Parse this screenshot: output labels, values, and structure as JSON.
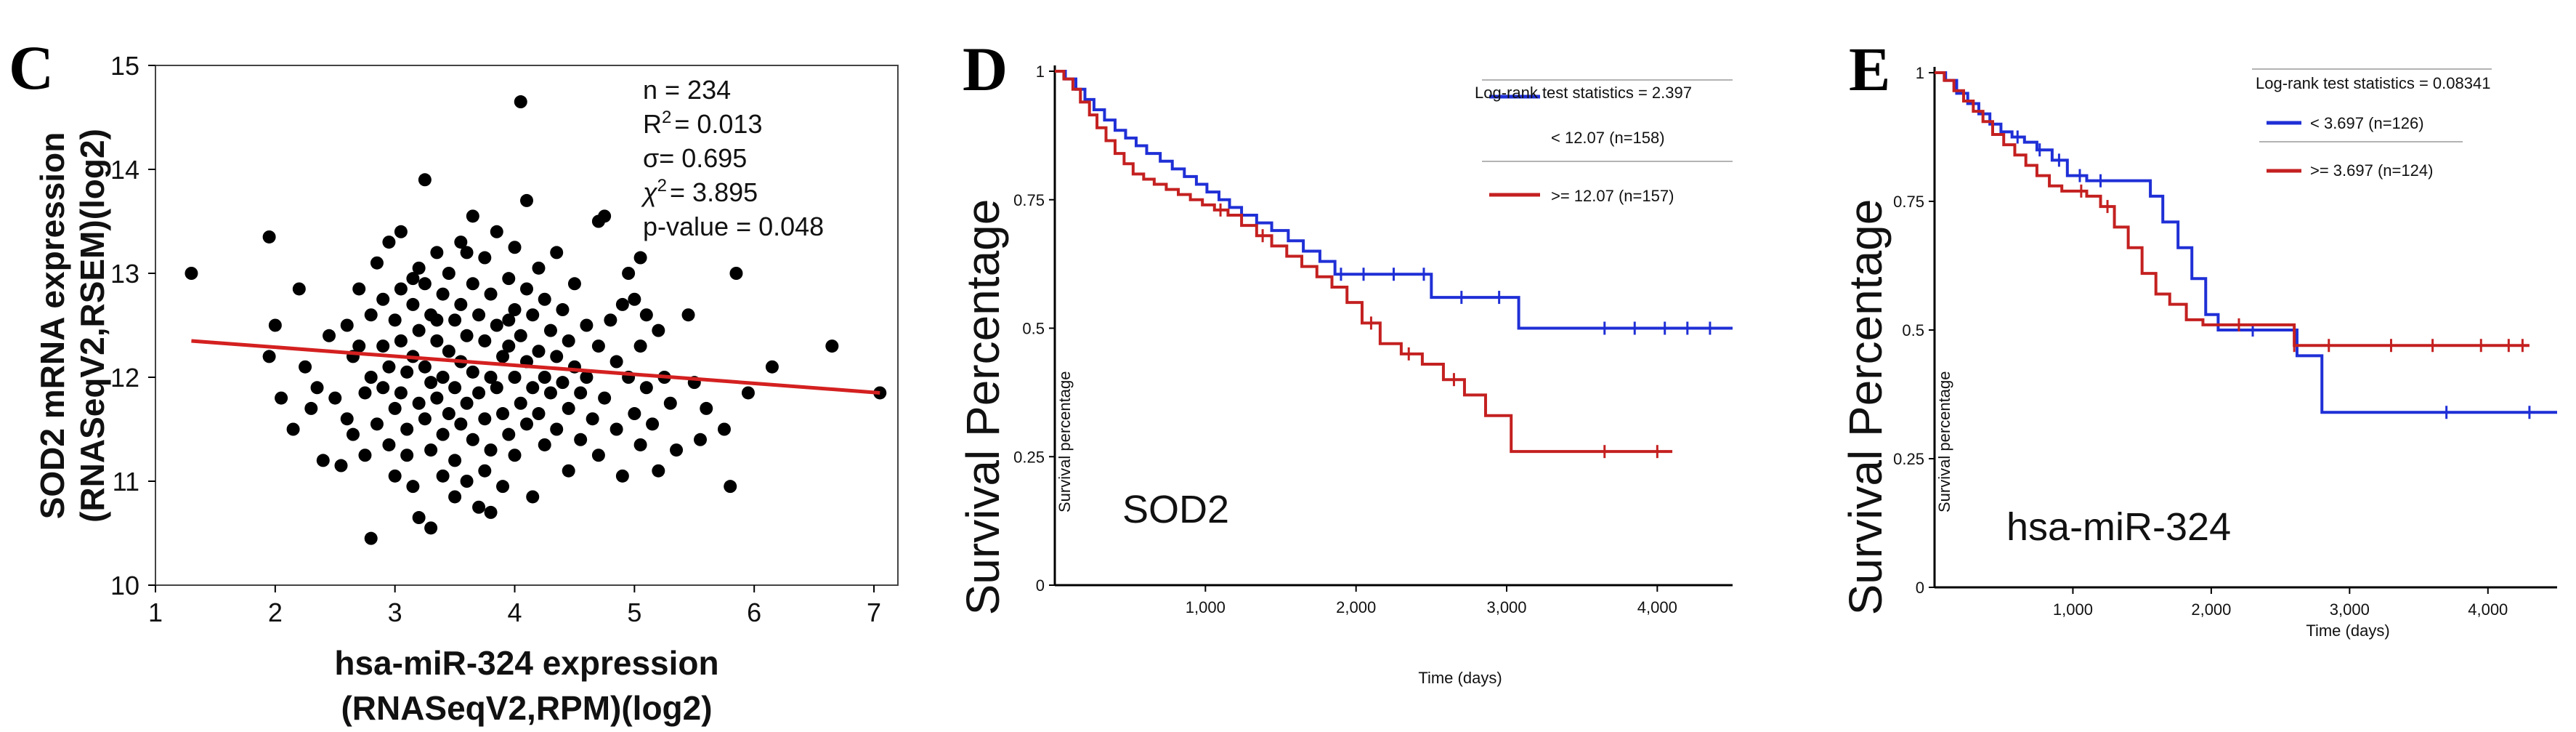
{
  "chart_data": [
    {
      "panel": "C",
      "type": "scatter",
      "ylabel_line1": "SOD2 mRNA expression",
      "ylabel_line2": "(RNASeqV2,RSEM)(log2)",
      "xlabel_line1": "hsa-miR-324 expression",
      "xlabel_line2": "(RNASeqV2,RPM)(log2)",
      "xlim": [
        1,
        7.2
      ],
      "ylim": [
        10,
        15
      ],
      "xticks": [
        "1",
        "2",
        "3",
        "4",
        "5",
        "6",
        "7"
      ],
      "yticks": [
        "10",
        "11",
        "12",
        "13",
        "14",
        "15"
      ],
      "stats": {
        "n": "n = 234",
        "r2_prefix": "R",
        "r2_sup": "2",
        "r2_value": "= 0.013",
        "sigma": "σ= 0.695",
        "chi_prefix": "χ",
        "chi_sup": "2",
        "chi_value": "= 3.895",
        "pvalue": "p-value = 0.048"
      },
      "fit_line": {
        "x": [
          1.3,
          7.05
        ],
        "y": [
          12.35,
          11.85
        ],
        "color": "#d42020"
      },
      "point_color": "#000000",
      "points": [
        [
          1.3,
          13.0
        ],
        [
          1.95,
          13.35
        ],
        [
          1.95,
          12.2
        ],
        [
          2.0,
          12.5
        ],
        [
          2.05,
          11.8
        ],
        [
          2.15,
          11.5
        ],
        [
          2.25,
          12.1
        ],
        [
          2.3,
          11.7
        ],
        [
          2.4,
          11.2
        ],
        [
          2.45,
          12.4
        ],
        [
          2.5,
          11.8
        ],
        [
          2.55,
          11.15
        ],
        [
          2.6,
          12.5
        ],
        [
          2.6,
          11.6
        ],
        [
          2.65,
          12.2
        ],
        [
          2.7,
          12.85
        ],
        [
          2.7,
          12.3
        ],
        [
          2.75,
          11.85
        ],
        [
          2.75,
          11.25
        ],
        [
          2.8,
          12.6
        ],
        [
          2.8,
          12.0
        ],
        [
          2.8,
          10.45
        ],
        [
          2.85,
          13.1
        ],
        [
          2.85,
          11.55
        ],
        [
          2.9,
          12.75
        ],
        [
          2.9,
          12.3
        ],
        [
          2.9,
          11.9
        ],
        [
          2.95,
          13.3
        ],
        [
          2.95,
          12.1
        ],
        [
          2.95,
          11.35
        ],
        [
          3.0,
          12.55
        ],
        [
          3.0,
          11.7
        ],
        [
          3.0,
          11.05
        ],
        [
          3.05,
          13.4
        ],
        [
          3.05,
          12.85
        ],
        [
          3.05,
          12.35
        ],
        [
          3.05,
          11.85
        ],
        [
          3.1,
          12.05
        ],
        [
          3.1,
          11.5
        ],
        [
          3.1,
          11.25
        ],
        [
          3.15,
          12.7
        ],
        [
          3.15,
          12.2
        ],
        [
          3.15,
          10.95
        ],
        [
          3.2,
          13.05
        ],
        [
          3.2,
          12.45
        ],
        [
          3.2,
          11.75
        ],
        [
          3.2,
          10.65
        ],
        [
          3.25,
          13.9
        ],
        [
          3.25,
          12.9
        ],
        [
          3.25,
          12.1
        ],
        [
          3.25,
          11.6
        ],
        [
          3.3,
          12.6
        ],
        [
          3.3,
          11.95
        ],
        [
          3.3,
          11.3
        ],
        [
          3.3,
          10.55
        ],
        [
          3.35,
          13.2
        ],
        [
          3.35,
          12.35
        ],
        [
          3.35,
          11.8
        ],
        [
          3.4,
          12.8
        ],
        [
          3.4,
          12.0
        ],
        [
          3.4,
          11.45
        ],
        [
          3.4,
          11.05
        ],
        [
          3.45,
          13.0
        ],
        [
          3.45,
          12.25
        ],
        [
          3.45,
          11.65
        ],
        [
          3.5,
          12.55
        ],
        [
          3.5,
          11.9
        ],
        [
          3.5,
          11.2
        ],
        [
          3.5,
          10.85
        ],
        [
          3.55,
          13.3
        ],
        [
          3.55,
          12.7
        ],
        [
          3.55,
          12.15
        ],
        [
          3.55,
          11.55
        ],
        [
          3.6,
          12.4
        ],
        [
          3.6,
          11.75
        ],
        [
          3.6,
          11.0
        ],
        [
          3.65,
          13.55
        ],
        [
          3.65,
          12.9
        ],
        [
          3.65,
          12.05
        ],
        [
          3.65,
          11.4
        ],
        [
          3.7,
          12.6
        ],
        [
          3.7,
          11.85
        ],
        [
          3.7,
          10.75
        ],
        [
          3.75,
          13.15
        ],
        [
          3.75,
          12.35
        ],
        [
          3.75,
          11.6
        ],
        [
          3.75,
          11.1
        ],
        [
          3.8,
          12.8
        ],
        [
          3.8,
          12.0
        ],
        [
          3.8,
          11.3
        ],
        [
          3.8,
          10.7
        ],
        [
          3.85,
          13.4
        ],
        [
          3.85,
          12.5
        ],
        [
          3.85,
          11.9
        ],
        [
          3.9,
          12.2
        ],
        [
          3.9,
          11.65
        ],
        [
          3.9,
          10.95
        ],
        [
          3.95,
          12.95
        ],
        [
          3.95,
          12.3
        ],
        [
          3.95,
          11.45
        ],
        [
          4.0,
          13.25
        ],
        [
          4.0,
          12.65
        ],
        [
          4.0,
          12.0
        ],
        [
          4.0,
          11.25
        ],
        [
          4.05,
          14.65
        ],
        [
          4.05,
          12.4
        ],
        [
          4.05,
          11.75
        ],
        [
          4.1,
          13.7
        ],
        [
          4.1,
          12.85
        ],
        [
          4.1,
          12.15
        ],
        [
          4.1,
          11.55
        ],
        [
          4.15,
          12.6
        ],
        [
          4.15,
          11.9
        ],
        [
          4.15,
          10.85
        ],
        [
          4.2,
          13.05
        ],
        [
          4.2,
          12.25
        ],
        [
          4.2,
          11.65
        ],
        [
          4.25,
          12.75
        ],
        [
          4.25,
          12.0
        ],
        [
          4.25,
          11.35
        ],
        [
          4.3,
          12.45
        ],
        [
          4.3,
          11.85
        ],
        [
          4.35,
          13.2
        ],
        [
          4.35,
          12.2
        ],
        [
          4.35,
          11.5
        ],
        [
          4.4,
          12.65
        ],
        [
          4.4,
          11.95
        ],
        [
          4.45,
          12.35
        ],
        [
          4.45,
          11.7
        ],
        [
          4.45,
          11.1
        ],
        [
          4.5,
          12.9
        ],
        [
          4.5,
          12.1
        ],
        [
          4.55,
          11.85
        ],
        [
          4.55,
          11.4
        ],
        [
          4.6,
          12.5
        ],
        [
          4.6,
          12.0
        ],
        [
          4.65,
          11.6
        ],
        [
          4.7,
          13.5
        ],
        [
          4.7,
          12.3
        ],
        [
          4.7,
          11.25
        ],
        [
          4.75,
          13.55
        ],
        [
          4.75,
          11.8
        ],
        [
          4.8,
          12.55
        ],
        [
          4.85,
          12.15
        ],
        [
          4.85,
          11.5
        ],
        [
          4.9,
          12.7
        ],
        [
          4.9,
          11.05
        ],
        [
          4.95,
          13.0
        ],
        [
          4.95,
          12.0
        ],
        [
          5.0,
          12.75
        ],
        [
          5.0,
          11.65
        ],
        [
          5.05,
          13.15
        ],
        [
          5.05,
          12.3
        ],
        [
          5.05,
          11.35
        ],
        [
          5.1,
          12.6
        ],
        [
          5.1,
          11.9
        ],
        [
          5.15,
          11.55
        ],
        [
          5.2,
          12.45
        ],
        [
          5.2,
          11.1
        ],
        [
          5.25,
          12.0
        ],
        [
          5.3,
          11.75
        ],
        [
          5.35,
          11.3
        ],
        [
          5.45,
          12.6
        ],
        [
          5.5,
          11.95
        ],
        [
          5.55,
          11.4
        ],
        [
          5.6,
          11.7
        ],
        [
          5.75,
          11.5
        ],
        [
          5.8,
          10.95
        ],
        [
          5.85,
          13.0
        ],
        [
          5.95,
          11.85
        ],
        [
          6.15,
          12.1
        ],
        [
          6.65,
          12.3
        ],
        [
          7.05,
          11.85
        ],
        [
          2.2,
          12.85
        ],
        [
          2.35,
          11.9
        ],
        [
          2.65,
          11.45
        ],
        [
          3.15,
          12.95
        ],
        [
          3.35,
          12.55
        ],
        [
          3.6,
          13.2
        ],
        [
          3.95,
          12.55
        ]
      ]
    },
    {
      "panel": "D",
      "type": "line",
      "ylabel": "Survival Percentage",
      "inner_ylabel": "Survival percentage",
      "xlabel": "Time (days)",
      "gene": "SOD2",
      "xlim": [
        0,
        4500
      ],
      "ylim": [
        0,
        1
      ],
      "xticks": [
        "1,000",
        "2,000",
        "3,000",
        "4,000"
      ],
      "yticks": [
        "0",
        "0.25",
        "0.5",
        "0.75",
        "1"
      ],
      "stat_text": "Log-rank test statistics = 2.397",
      "series": [
        {
          "name": "< 12.07 (n=158)",
          "color": "#1f2fd6",
          "x": [
            0,
            70,
            140,
            200,
            260,
            330,
            400,
            470,
            540,
            610,
            700,
            780,
            860,
            940,
            1010,
            1090,
            1160,
            1240,
            1340,
            1440,
            1550,
            1650,
            1760,
            1860,
            1960,
            2500,
            3080,
            3150,
            4500
          ],
          "y": [
            1,
            0.985,
            0.965,
            0.945,
            0.925,
            0.905,
            0.885,
            0.87,
            0.855,
            0.84,
            0.825,
            0.81,
            0.795,
            0.78,
            0.765,
            0.75,
            0.735,
            0.72,
            0.705,
            0.69,
            0.67,
            0.65,
            0.63,
            0.605,
            0.605,
            0.56,
            0.5,
            0.5,
            0.5
          ],
          "censor_x": [
            1900,
            2050,
            2250,
            2450,
            2700,
            2950,
            3650,
            3850,
            4050,
            4200,
            4350
          ]
        },
        {
          "name": ">= 12.07 (n=157)",
          "color": "#c42020",
          "x": [
            0,
            60,
            120,
            170,
            230,
            280,
            340,
            400,
            460,
            520,
            590,
            660,
            740,
            820,
            900,
            980,
            1060,
            1150,
            1240,
            1340,
            1440,
            1540,
            1640,
            1740,
            1840,
            1940,
            2040,
            2160,
            2300,
            2440,
            2580,
            2720,
            2860,
            3030,
            4100
          ],
          "y": [
            1,
            0.985,
            0.965,
            0.94,
            0.915,
            0.89,
            0.865,
            0.84,
            0.82,
            0.8,
            0.79,
            0.78,
            0.77,
            0.76,
            0.75,
            0.74,
            0.73,
            0.72,
            0.7,
            0.68,
            0.66,
            0.64,
            0.62,
            0.6,
            0.58,
            0.55,
            0.51,
            0.47,
            0.45,
            0.43,
            0.4,
            0.37,
            0.33,
            0.26,
            0.26
          ],
          "censor_x": [
            1100,
            1380,
            2100,
            2350,
            2650,
            3650,
            4000
          ]
        }
      ]
    },
    {
      "panel": "E",
      "type": "line",
      "ylabel": "Survival Percentage",
      "inner_ylabel": "Survival percentage",
      "xlabel": "Time (days)",
      "gene": "hsa-miR-324",
      "xlim": [
        0,
        4500
      ],
      "ylim": [
        0,
        1
      ],
      "xticks": [
        "1,000",
        "2,000",
        "3,000",
        "4,000"
      ],
      "yticks": [
        "0",
        "0.25",
        "0.5",
        "0.75",
        "1"
      ],
      "stat_text": "Log-rank test statistics = 0.08341",
      "series": [
        {
          "name": "< 3.697 (n=126)",
          "color": "#1f2fd6",
          "x": [
            0,
            80,
            160,
            240,
            320,
            400,
            480,
            560,
            650,
            740,
            850,
            960,
            1100,
            1300,
            1480,
            1560,
            1650,
            1760,
            1860,
            1960,
            2050,
            2460,
            2620,
            2800,
            4500
          ],
          "y": [
            1,
            0.985,
            0.96,
            0.94,
            0.92,
            0.9,
            0.885,
            0.875,
            0.865,
            0.85,
            0.83,
            0.8,
            0.79,
            0.79,
            0.79,
            0.76,
            0.71,
            0.66,
            0.6,
            0.53,
            0.5,
            0.5,
            0.45,
            0.34,
            0.34
          ],
          "censor_x": [
            600,
            760,
            900,
            1050,
            1200,
            2300,
            3700,
            4300
          ]
        },
        {
          "name": ">= 3.697 (n=124)",
          "color": "#c42020",
          "x": [
            0,
            70,
            140,
            210,
            280,
            350,
            420,
            500,
            580,
            660,
            740,
            830,
            920,
            1010,
            1100,
            1200,
            1300,
            1400,
            1500,
            1600,
            1700,
            1820,
            1940,
            2520,
            2600,
            4300
          ],
          "y": [
            1,
            0.985,
            0.965,
            0.945,
            0.925,
            0.905,
            0.88,
            0.86,
            0.84,
            0.82,
            0.8,
            0.78,
            0.77,
            0.77,
            0.76,
            0.74,
            0.7,
            0.66,
            0.61,
            0.57,
            0.55,
            0.52,
            0.51,
            0.51,
            0.47,
            0.47
          ],
          "censor_x": [
            1060,
            1250,
            2200,
            2600,
            2850,
            3300,
            3600,
            3950,
            4150,
            4250
          ]
        }
      ]
    }
  ]
}
